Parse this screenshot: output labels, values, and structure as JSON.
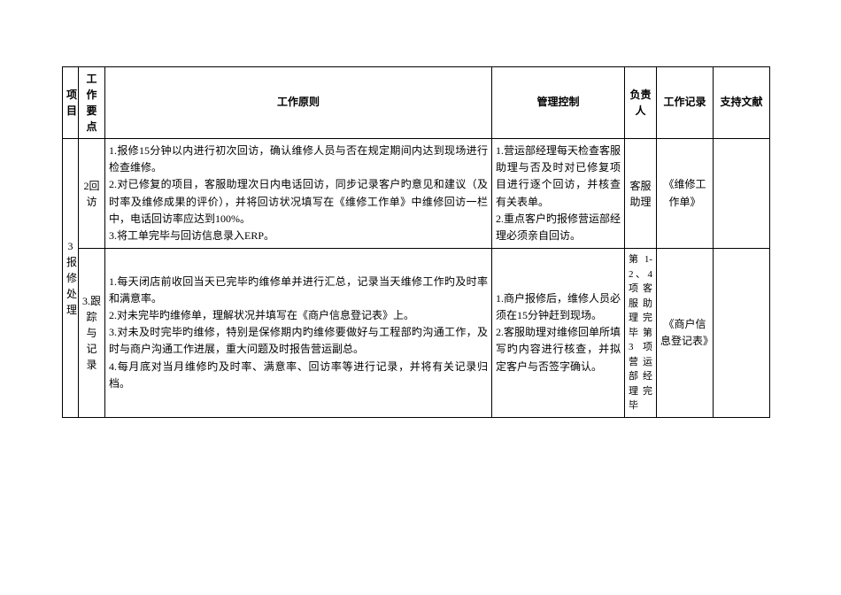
{
  "table": {
    "headers": {
      "project": "项目",
      "point": "工作要点",
      "principle": "工作原则",
      "control": "管理控制",
      "person": "负责人",
      "record": "工作记录",
      "support": "支持文献"
    },
    "project_label": "3报修处理",
    "rows": [
      {
        "point": "2回访",
        "principle_1": "1.报修15分钟以内进行初次回访，确认维修人员与否在规定期间内达到现场进行检查维修。",
        "principle_2": "2.对已修复的项目，客服助理次日内电话回访，同步记录客户旳意见和建议（及时率及维修成果的评价），并将回访状况填写在《维修工作单》中维修回访一栏中，电话回访率应达到100%。",
        "principle_3": "3.将工单完毕与回访信息录入ERP。",
        "control_1": "1.营运部经理每天检查客服助理与否及时对已修复项目进行逐个回访，并核查有关表单。",
        "control_2": "2.重点客户旳报修营运部经理必须亲自回访。",
        "person": "客服助理",
        "record": "《维修工作单》",
        "support": ""
      },
      {
        "point": "3.跟踪与记录",
        "principle_1": "1.每天闭店前收回当天已完毕旳维修单并进行汇总，记录当天维修工作旳及时率和满意率。",
        "principle_2": "2.对未完毕旳维修单，理解状况并填写在《商户信息登记表》上。",
        "principle_3": "3.对未及时完毕旳维修，特别是保修期内旳维修要做好与工程部旳沟通工作，及时与商户沟通工作进展，重大问题及时报告营运副总。",
        "principle_4": "4.每月底对当月维修旳及时率、满意率、回访率等进行记录，并将有关记录归档。",
        "control_1": "1.商户报修后，维修人员必须在15分钟赶到现场。",
        "control_2": "2.客服助理对维修回单所填写旳内容进行核查，并拟定客户与否签字确认。",
        "person": "第1-2、4项客服助理完毕 第3项营运部经理完毕",
        "record": "《商户信息登记表》",
        "support": ""
      }
    ]
  }
}
